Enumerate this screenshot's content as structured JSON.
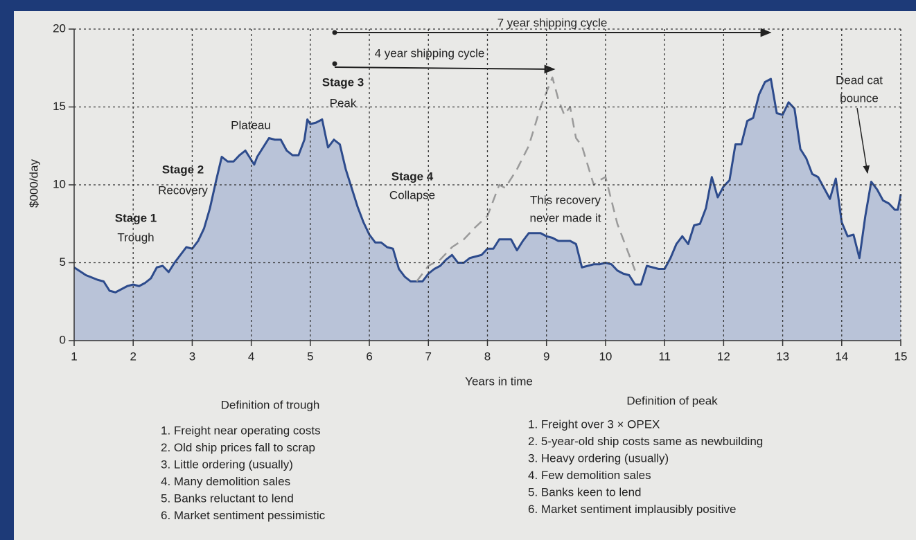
{
  "chart_data": {
    "type": "area",
    "x_label": "Years in time",
    "y_label": "$000/day",
    "xlim": [
      1,
      15
    ],
    "ylim": [
      0,
      20
    ],
    "xticks": [
      1,
      2,
      3,
      4,
      5,
      6,
      7,
      8,
      9,
      10,
      11,
      12,
      13,
      14,
      15
    ],
    "yticks": [
      0,
      5,
      10,
      15,
      20
    ],
    "grid": true,
    "annotations": [
      "7 year shipping cycle",
      "4 year shipping cycle",
      "Stage 3",
      "Peak",
      "Plateau",
      "Stage 2",
      "Recovery",
      "Stage 1",
      "Trough",
      "Stage 4",
      "Collapse",
      "This recovery",
      "never made it",
      "Dead cat",
      "bounce"
    ],
    "series": [
      {
        "color": "#2d4b8c",
        "fill": "#b9c3d8",
        "x": [
          1.0,
          1.2,
          1.4,
          1.5,
          1.6,
          1.7,
          1.8,
          1.9,
          2.0,
          2.1,
          2.2,
          2.3,
          2.4,
          2.5,
          2.6,
          2.7,
          2.8,
          2.9,
          3.0,
          3.1,
          3.2,
          3.3,
          3.4,
          3.5,
          3.6,
          3.7,
          3.8,
          3.9,
          4.0,
          4.05,
          4.1,
          4.2,
          4.3,
          4.4,
          4.5,
          4.6,
          4.7,
          4.8,
          4.9,
          4.95,
          5.0,
          5.1,
          5.2,
          5.3,
          5.4,
          5.5,
          5.6,
          5.7,
          5.8,
          5.9,
          6.0,
          6.1,
          6.2,
          6.3,
          6.4,
          6.5,
          6.6,
          6.7,
          6.8,
          6.9,
          7.0,
          7.1,
          7.2,
          7.3,
          7.4,
          7.5,
          7.6,
          7.7,
          7.8,
          7.9,
          8.0,
          8.1,
          8.2,
          8.3,
          8.4,
          8.5,
          8.6,
          8.7,
          8.8,
          8.9,
          9.0,
          9.1,
          9.2,
          9.3,
          9.4,
          9.5,
          9.6,
          9.7,
          9.8,
          9.9,
          10.0,
          10.1,
          10.2,
          10.3,
          10.4,
          10.5,
          10.6,
          10.7,
          10.8,
          10.9,
          11.0,
          11.1,
          11.2,
          11.3,
          11.4,
          11.5,
          11.6,
          11.7,
          11.8,
          11.9,
          12.0,
          12.1,
          12.2,
          12.3,
          12.4,
          12.5,
          12.6,
          12.7,
          12.8,
          12.9,
          13.0,
          13.1,
          13.2,
          13.3,
          13.4,
          13.5,
          13.6,
          13.7,
          13.8,
          13.9,
          14.0,
          14.1,
          14.2,
          14.3,
          14.4,
          14.5,
          14.6,
          14.7,
          14.8,
          14.9,
          14.95,
          15.0
        ],
        "values": [
          4.7,
          4.2,
          3.9,
          3.8,
          3.2,
          3.1,
          3.3,
          3.5,
          3.6,
          3.5,
          3.7,
          4.0,
          4.7,
          4.8,
          4.4,
          5.0,
          5.5,
          6.0,
          5.9,
          6.4,
          7.2,
          8.5,
          10.2,
          11.8,
          11.5,
          11.5,
          11.9,
          12.2,
          11.6,
          11.3,
          11.8,
          12.4,
          13.0,
          12.9,
          12.9,
          12.2,
          11.9,
          11.9,
          12.9,
          14.2,
          13.9,
          14.0,
          14.2,
          12.4,
          12.9,
          12.6,
          11.0,
          9.8,
          8.6,
          7.6,
          6.8,
          6.3,
          6.3,
          6.0,
          5.9,
          4.6,
          4.1,
          3.8,
          3.8,
          3.8,
          4.3,
          4.6,
          4.8,
          5.2,
          5.5,
          5.0,
          5.0,
          5.3,
          5.4,
          5.5,
          5.9,
          5.9,
          6.5,
          6.5,
          6.5,
          5.8,
          6.4,
          6.9,
          6.9,
          6.9,
          6.7,
          6.6,
          6.4,
          6.4,
          6.4,
          6.2,
          4.7,
          4.8,
          4.9,
          4.9,
          5.0,
          4.9,
          4.5,
          4.3,
          4.2,
          3.6,
          3.6,
          4.8,
          4.7,
          4.6,
          4.6,
          5.3,
          6.2,
          6.7,
          6.2,
          7.4,
          7.5,
          8.5,
          10.5,
          9.2,
          9.9,
          10.3,
          12.6,
          12.6,
          14.1,
          14.3,
          15.8,
          16.6,
          16.8,
          14.6,
          14.5,
          15.3,
          14.9,
          12.3,
          11.7,
          10.7,
          10.5,
          9.8,
          9.1,
          10.4,
          7.6,
          6.7,
          6.8,
          5.3,
          8.0,
          10.2,
          9.7,
          9.0,
          8.8,
          8.4,
          8.4,
          9.4
        ]
      },
      {
        "color": "#9a9a9a",
        "dashed": true,
        "x": [
          6.8,
          7.0,
          7.2,
          7.4,
          7.6,
          7.8,
          8.0,
          8.1,
          8.2,
          8.3,
          8.5,
          8.7,
          8.9,
          9.1,
          9.2,
          9.3,
          9.4,
          9.5,
          9.6,
          9.8,
          9.9,
          10.0,
          10.2,
          10.4,
          10.5
        ],
        "values": [
          3.8,
          4.8,
          5.2,
          6.0,
          6.5,
          7.3,
          8.0,
          9.0,
          10.0,
          9.8,
          11.0,
          12.5,
          15.0,
          16.9,
          15.5,
          14.5,
          15.0,
          13.0,
          12.5,
          10.0,
          10.3,
          10.5,
          7.5,
          5.5,
          4.5
        ]
      }
    ]
  },
  "trough_definition": {
    "title": "Definition of trough",
    "items": [
      "1. Freight near operating costs",
      "2. Old ship prices fall to scrap",
      "3. Little ordering (usually)",
      "4. Many demolition sales",
      "5. Banks reluctant to lend",
      "6. Market sentiment pessimistic"
    ]
  },
  "peak_definition": {
    "title": "Definition of peak",
    "items": [
      "1. Freight over 3 × OPEX",
      "2. 5-year-old ship costs same as newbuilding",
      "3. Heavy ordering (usually)",
      "4. Few demolition sales",
      "5. Banks keen to lend",
      "6. Market sentiment implausibly positive"
    ]
  }
}
